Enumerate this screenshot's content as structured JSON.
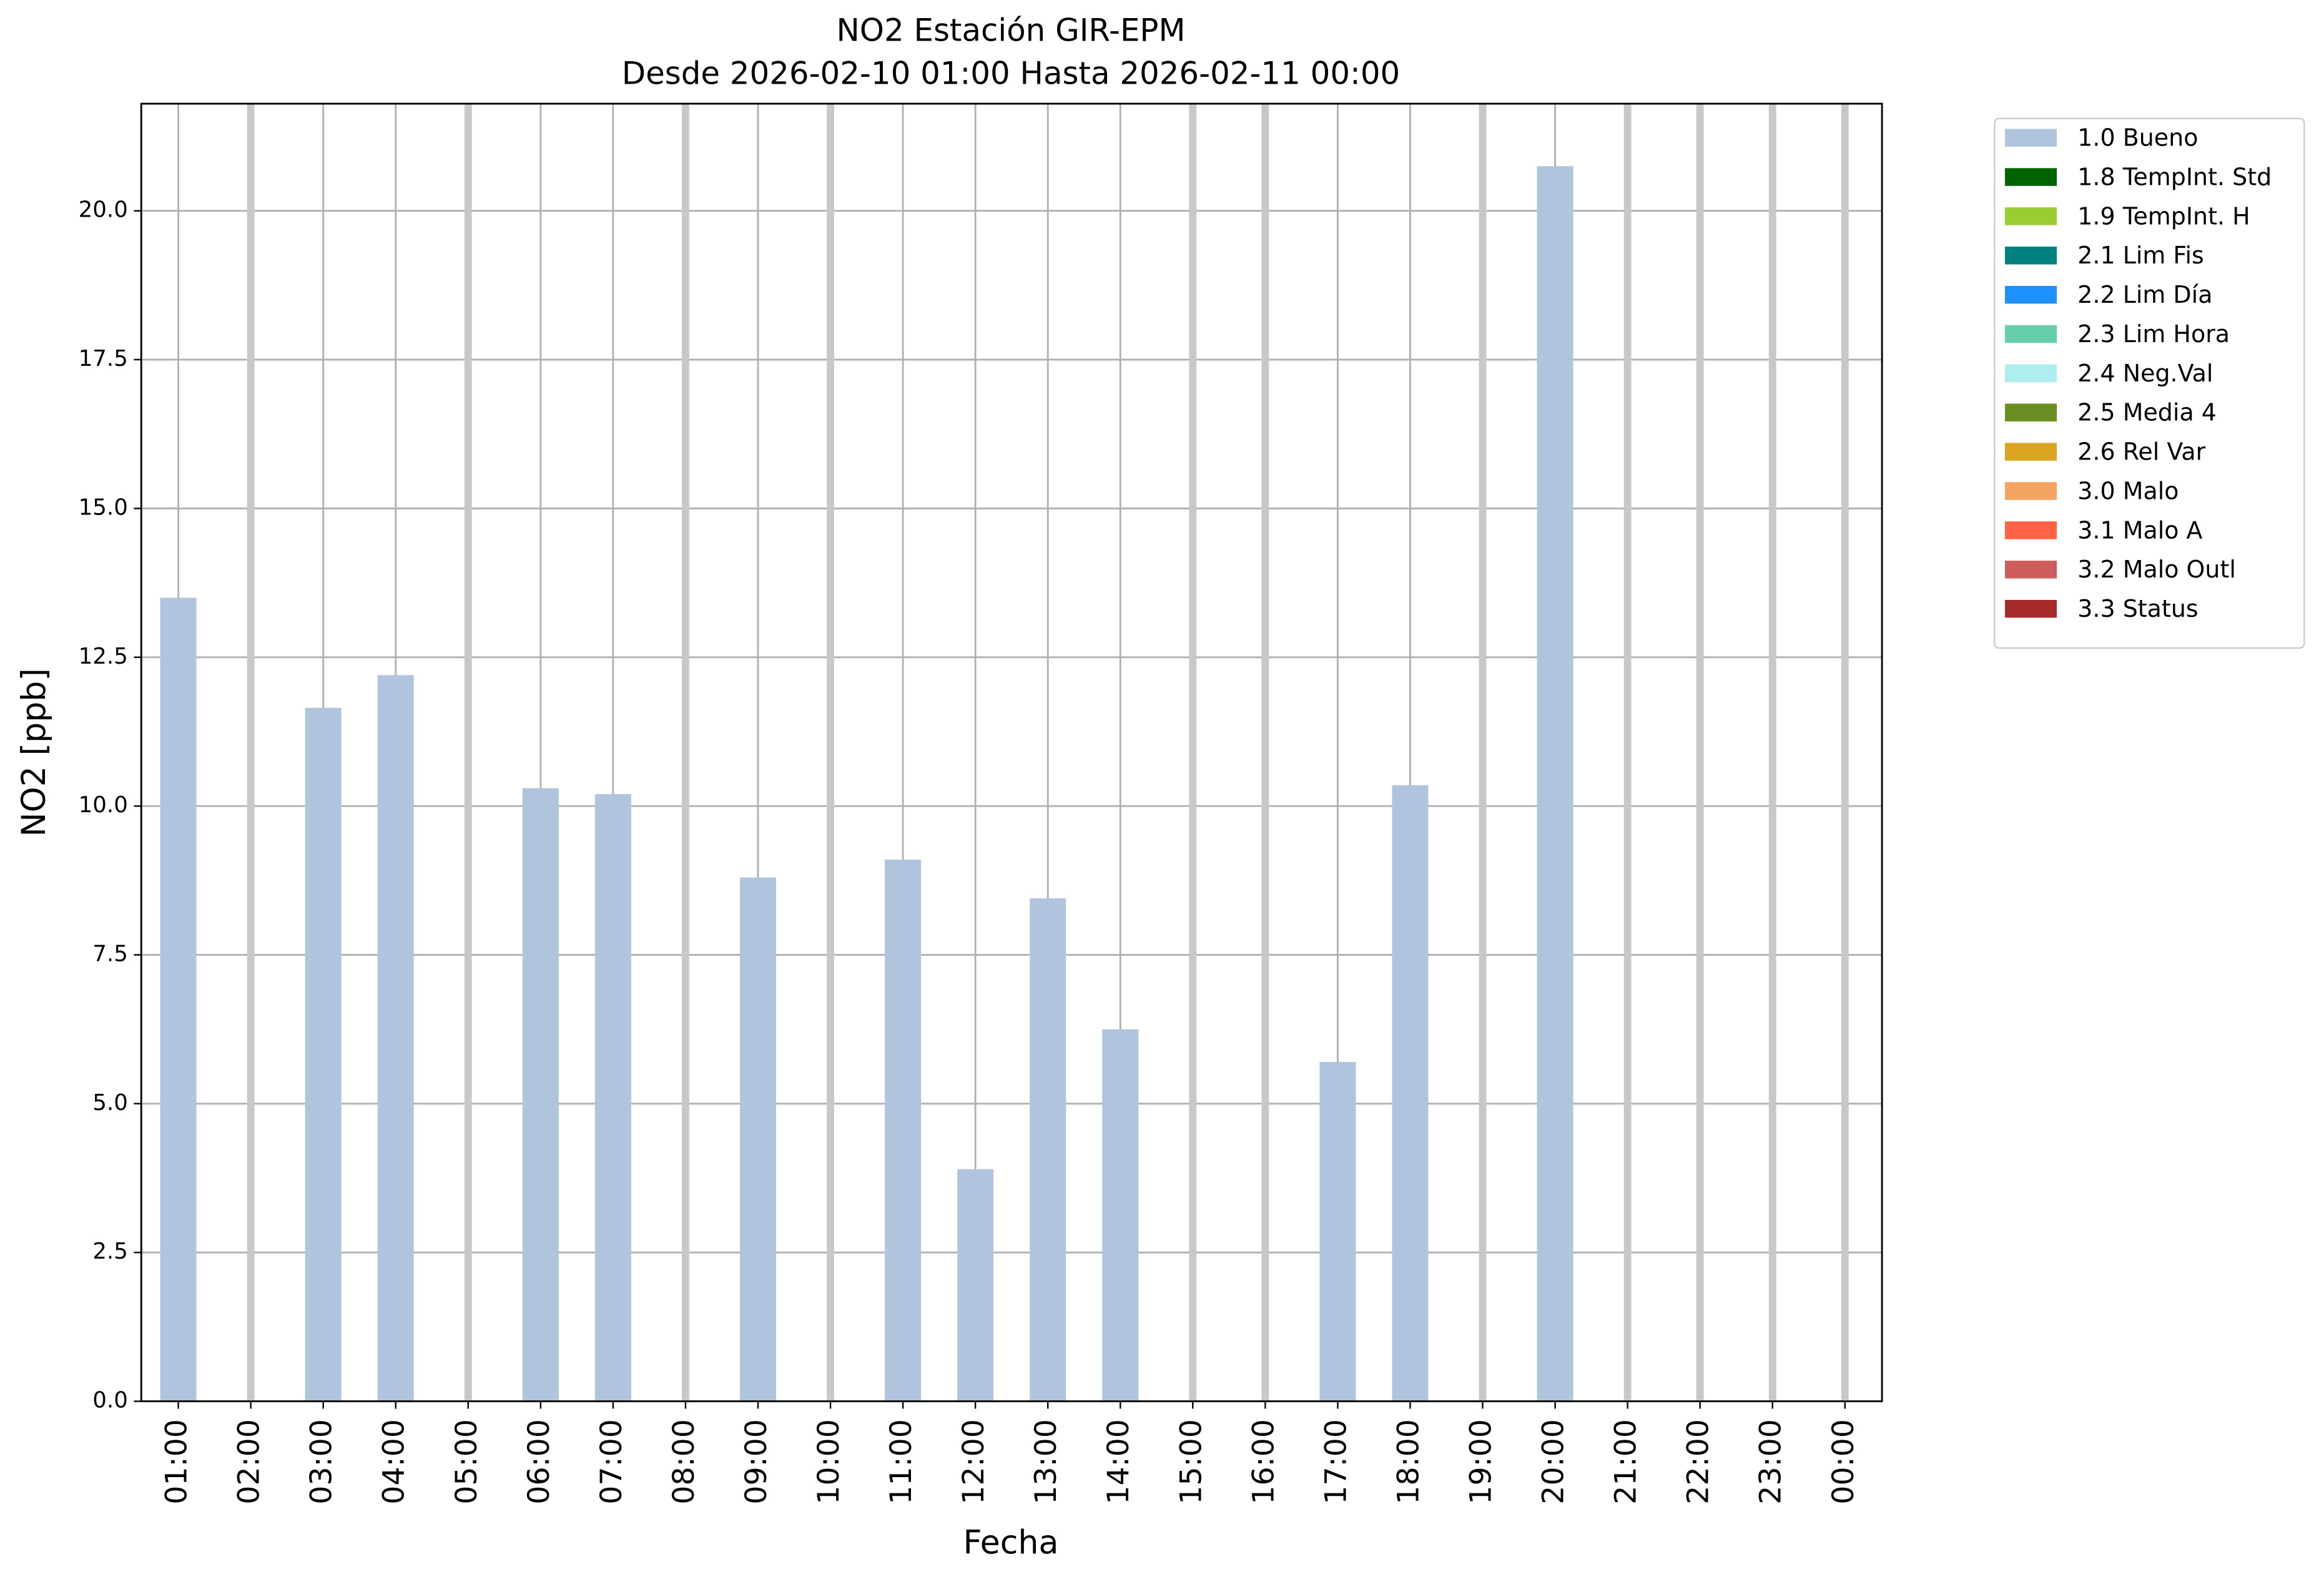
{
  "chart_data": {
    "type": "bar",
    "title": "NO2 Estación GIR-EPM",
    "subtitle": "Desde 2026-02-10 01:00 Hasta 2026-02-11 00:00",
    "x_label": "Fecha",
    "y_label": "NO2 [ppb]",
    "categories": [
      "01:00",
      "02:00",
      "03:00",
      "04:00",
      "05:00",
      "06:00",
      "07:00",
      "08:00",
      "09:00",
      "10:00",
      "11:00",
      "12:00",
      "13:00",
      "14:00",
      "15:00",
      "16:00",
      "17:00",
      "18:00",
      "19:00",
      "20:00",
      "21:00",
      "22:00",
      "23:00",
      "00:00"
    ],
    "series": [
      {
        "name": "1.0 Bueno",
        "color": "#b0c4de",
        "values": [
          13.5,
          null,
          11.65,
          12.2,
          null,
          10.3,
          10.2,
          null,
          8.8,
          null,
          9.1,
          3.9,
          8.45,
          6.25,
          null,
          null,
          5.7,
          10.35,
          null,
          20.75,
          null,
          null,
          null,
          null
        ]
      },
      {
        "name": "1.8 TempInt. Std",
        "color": "#006400",
        "values": [
          null,
          null,
          null,
          null,
          null,
          null,
          null,
          null,
          null,
          null,
          null,
          null,
          null,
          null,
          null,
          null,
          null,
          null,
          null,
          null,
          null,
          null,
          null,
          null
        ]
      },
      {
        "name": "1.9 TempInt. H",
        "color": "#9acd32",
        "values": [
          null,
          null,
          null,
          null,
          null,
          null,
          null,
          null,
          null,
          null,
          null,
          null,
          null,
          null,
          null,
          null,
          null,
          null,
          null,
          null,
          null,
          null,
          null,
          null
        ]
      },
      {
        "name": "2.1 Lim Fis",
        "color": "#008080",
        "values": [
          null,
          null,
          null,
          null,
          null,
          null,
          null,
          null,
          null,
          null,
          null,
          null,
          null,
          null,
          null,
          null,
          null,
          null,
          null,
          null,
          null,
          null,
          null,
          null
        ]
      },
      {
        "name": "2.2 Lim Día",
        "color": "#1e90ff",
        "values": [
          null,
          null,
          null,
          null,
          null,
          null,
          null,
          null,
          null,
          null,
          null,
          null,
          null,
          null,
          null,
          null,
          null,
          null,
          null,
          null,
          null,
          null,
          null,
          null
        ]
      },
      {
        "name": "2.3 Lim Hora",
        "color": "#66cdaa",
        "values": [
          null,
          null,
          null,
          null,
          null,
          null,
          null,
          null,
          null,
          null,
          null,
          null,
          null,
          null,
          null,
          null,
          null,
          null,
          null,
          null,
          null,
          null,
          null,
          null
        ]
      },
      {
        "name": "2.4 Neg.Val",
        "color": "#afeeee",
        "values": [
          null,
          null,
          null,
          null,
          null,
          null,
          null,
          null,
          null,
          null,
          null,
          null,
          null,
          null,
          null,
          null,
          null,
          null,
          null,
          null,
          null,
          null,
          null,
          null
        ]
      },
      {
        "name": "2.5 Media 4",
        "color": "#6b8e23",
        "values": [
          null,
          null,
          null,
          null,
          null,
          null,
          null,
          null,
          null,
          null,
          null,
          null,
          null,
          null,
          null,
          null,
          null,
          null,
          null,
          null,
          null,
          null,
          null,
          null
        ]
      },
      {
        "name": "2.6 Rel Var",
        "color": "#daa520",
        "values": [
          null,
          null,
          null,
          null,
          null,
          null,
          null,
          null,
          null,
          null,
          null,
          null,
          null,
          null,
          null,
          null,
          null,
          null,
          null,
          null,
          null,
          null,
          null,
          null
        ]
      },
      {
        "name": "3.0 Malo",
        "color": "#f4a460",
        "values": [
          null,
          null,
          null,
          null,
          null,
          null,
          null,
          null,
          null,
          null,
          null,
          null,
          null,
          null,
          null,
          null,
          null,
          null,
          null,
          null,
          null,
          null,
          null,
          null
        ]
      },
      {
        "name": "3.1 Malo A",
        "color": "#ff6347",
        "values": [
          null,
          null,
          null,
          null,
          null,
          null,
          null,
          null,
          null,
          null,
          null,
          null,
          null,
          null,
          null,
          null,
          null,
          null,
          null,
          null,
          null,
          null,
          null,
          null
        ]
      },
      {
        "name": "3.2 Malo Outl",
        "color": "#cd5c5c",
        "values": [
          null,
          null,
          null,
          null,
          null,
          null,
          null,
          null,
          null,
          null,
          null,
          null,
          null,
          null,
          null,
          null,
          null,
          null,
          null,
          null,
          null,
          null,
          null,
          null
        ]
      },
      {
        "name": "3.3 Status",
        "color": "#a52a2a",
        "values": [
          null,
          null,
          null,
          null,
          null,
          null,
          null,
          null,
          null,
          null,
          null,
          null,
          null,
          null,
          null,
          null,
          null,
          null,
          null,
          null,
          null,
          null,
          null,
          null
        ]
      }
    ],
    "ylim": [
      0,
      21.8
    ],
    "yticks": [
      {
        "value": 0,
        "label": "0.0"
      },
      2.5,
      {
        "value": 5,
        "label": "5.0"
      },
      7.5,
      {
        "value": 10,
        "label": "10.0"
      },
      12.5,
      {
        "value": 15,
        "label": "15.0"
      },
      17.5,
      {
        "value": 20,
        "label": "20.0"
      }
    ],
    "grid": true,
    "legend": "outside-upper-right"
  }
}
